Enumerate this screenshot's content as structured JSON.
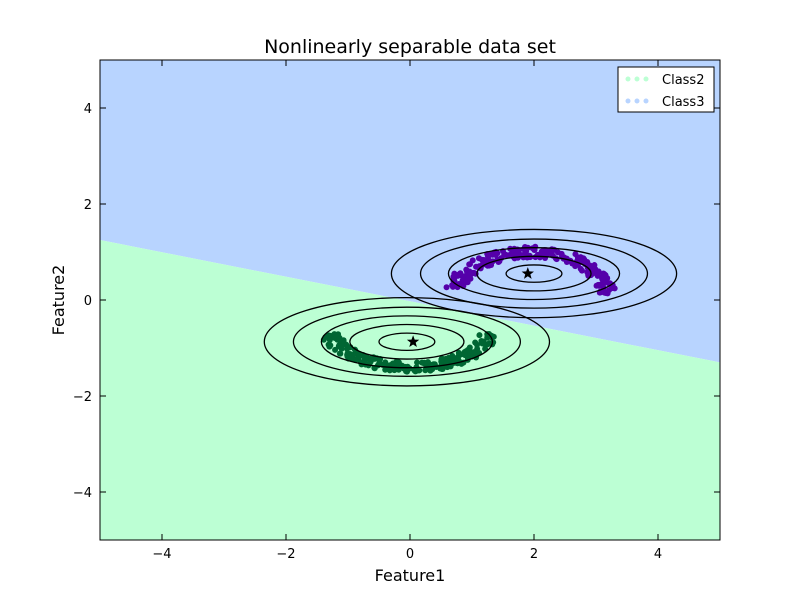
{
  "chart_data": {
    "type": "scatter",
    "title": "Nonlinearly separable data set",
    "xlabel": "Feature1",
    "ylabel": "Feature2",
    "xlim": [
      -5,
      5
    ],
    "ylim": [
      -5,
      5
    ],
    "xticks": [
      -4,
      -2,
      0,
      2,
      4
    ],
    "yticks": [
      -4,
      -2,
      0,
      2,
      4
    ],
    "xtick_labels": [
      "−4",
      "−2",
      "0",
      "2",
      "4"
    ],
    "ytick_labels": [
      "−4",
      "−2",
      "0",
      "2",
      "4"
    ],
    "grid": false,
    "legend_position": "top-right",
    "decision_regions": {
      "boundary_line": [
        [
          -5,
          1.25
        ],
        [
          5,
          -1.3
        ]
      ],
      "above_class": "Class3",
      "below_class": "Class2",
      "above_color": "#b8d4ff",
      "below_color": "#bcffd4"
    },
    "series": [
      {
        "name": "Class2",
        "legend_color": "#bcffd4",
        "point_color": "#006633",
        "shape": "crescent-opening-up",
        "center": [
          0,
          -0.55
        ],
        "radius_x": 1.3,
        "radius_y": 0.85,
        "thickness": 0.12,
        "angle_start_deg": 190,
        "angle_end_deg": 350,
        "n_points": 220,
        "mean": [
          0.05,
          -0.87
        ],
        "contour_center": [
          -0.05,
          -0.87
        ],
        "contour_radii": [
          [
            0.45,
            0.18
          ],
          [
            0.92,
            0.36
          ],
          [
            1.38,
            0.54
          ],
          [
            1.83,
            0.72
          ],
          [
            2.3,
            0.92
          ]
        ]
      },
      {
        "name": "Class3",
        "legend_color": "#b8d4ff",
        "point_color": "#5500aa",
        "shape": "crescent-opening-down",
        "center": [
          1.95,
          0.05
        ],
        "radius_x": 1.25,
        "radius_y": 0.95,
        "thickness": 0.12,
        "angle_start_deg": 5,
        "angle_end_deg": 170,
        "n_points": 220,
        "mean": [
          1.9,
          0.55
        ],
        "contour_center": [
          2.0,
          0.55
        ],
        "contour_radii": [
          [
            0.45,
            0.18
          ],
          [
            0.92,
            0.36
          ],
          [
            1.38,
            0.54
          ],
          [
            1.83,
            0.72
          ],
          [
            2.3,
            0.92
          ]
        ]
      }
    ]
  }
}
